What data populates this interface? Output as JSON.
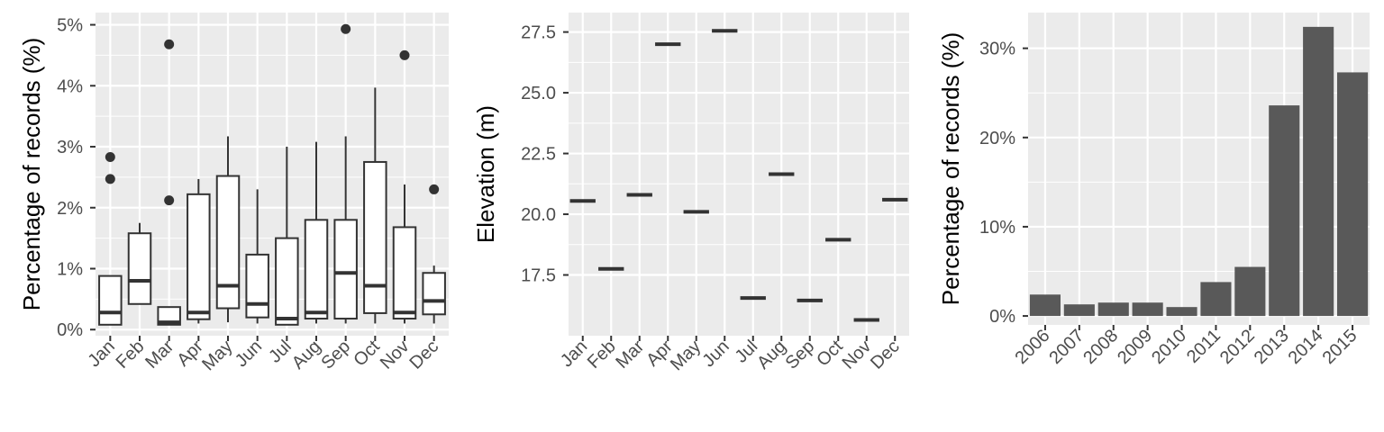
{
  "colors": {
    "panel_background": "#ebebeb",
    "grid_major": "#ffffff",
    "mark_fill": "#595959",
    "mark_line": "#333333",
    "tick_text": "#4d4d4d",
    "axis_title": "#000000"
  },
  "chart_data": [
    {
      "type": "boxplot",
      "title": "",
      "xlabel": "",
      "ylabel": "Percentage of records (%)",
      "ylim": [
        -0.1,
        5.2
      ],
      "y_ticks": [
        0,
        1,
        2,
        3,
        4,
        5
      ],
      "y_tick_labels": [
        "0%",
        "1%",
        "2%",
        "3%",
        "4%",
        "5%"
      ],
      "grid": true,
      "categories": [
        "Jan",
        "Feb",
        "Mar",
        "Apr",
        "May",
        "Jun",
        "Jul",
        "Aug",
        "Sep",
        "Oct",
        "Nov",
        "Dec"
      ],
      "boxes": [
        {
          "min": 0.08,
          "q1": 0.08,
          "median": 0.28,
          "q3": 0.88,
          "max": 0.88,
          "outliers": [
            2.47,
            2.83
          ]
        },
        {
          "min": 0.42,
          "q1": 0.42,
          "median": 0.8,
          "q3": 1.58,
          "max": 1.75,
          "outliers": []
        },
        {
          "min": 0.08,
          "q1": 0.08,
          "median": 0.12,
          "q3": 0.37,
          "max": 0.37,
          "outliers": [
            2.12,
            4.68
          ]
        },
        {
          "min": 0.1,
          "q1": 0.17,
          "median": 0.28,
          "q3": 2.22,
          "max": 2.47,
          "outliers": []
        },
        {
          "min": 0.12,
          "q1": 0.35,
          "median": 0.72,
          "q3": 2.52,
          "max": 3.17,
          "outliers": []
        },
        {
          "min": 0.1,
          "q1": 0.2,
          "median": 0.42,
          "q3": 1.23,
          "max": 2.3,
          "outliers": []
        },
        {
          "min": 0.08,
          "q1": 0.08,
          "median": 0.18,
          "q3": 1.5,
          "max": 3.0,
          "outliers": []
        },
        {
          "min": 0.1,
          "q1": 0.18,
          "median": 0.28,
          "q3": 1.8,
          "max": 3.08,
          "outliers": []
        },
        {
          "min": 0.1,
          "q1": 0.18,
          "median": 0.93,
          "q3": 1.8,
          "max": 3.17,
          "outliers": [
            4.93
          ]
        },
        {
          "min": 0.1,
          "q1": 0.27,
          "median": 0.72,
          "q3": 2.75,
          "max": 3.97,
          "outliers": []
        },
        {
          "min": 0.1,
          "q1": 0.18,
          "median": 0.28,
          "q3": 1.68,
          "max": 2.38,
          "outliers": [
            4.5
          ]
        },
        {
          "min": 0.1,
          "q1": 0.25,
          "median": 0.47,
          "q3": 0.93,
          "max": 1.05,
          "outliers": [
            2.3
          ]
        }
      ]
    },
    {
      "type": "crossbar",
      "title": "",
      "xlabel": "",
      "ylabel": "Elevation (m)",
      "ylim": [
        15.0,
        28.3
      ],
      "y_ticks": [
        17.5,
        20.0,
        22.5,
        25.0,
        27.5
      ],
      "y_tick_labels": [
        "17.5",
        "20.0",
        "22.5",
        "25.0",
        "27.5"
      ],
      "grid": true,
      "categories": [
        "Jan",
        "Feb",
        "Mar",
        "Apr",
        "May",
        "Jun",
        "Jul",
        "Aug",
        "Sep",
        "Oct",
        "Nov",
        "Dec"
      ],
      "values": [
        20.55,
        17.75,
        20.8,
        27.0,
        20.1,
        27.55,
        16.55,
        21.65,
        16.45,
        18.95,
        15.65,
        20.6
      ]
    },
    {
      "type": "bar",
      "title": "",
      "xlabel": "",
      "ylabel": "Percentage of records (%)",
      "ylim": [
        -1.0,
        34.0
      ],
      "y_ticks": [
        0,
        10,
        20,
        30
      ],
      "y_tick_labels": [
        "0%",
        "10%",
        "20%",
        "30%"
      ],
      "grid": true,
      "categories": [
        "2006",
        "2007",
        "2008",
        "2009",
        "2010",
        "2011",
        "2012",
        "2013",
        "2014",
        "2015"
      ],
      "values": [
        2.4,
        1.3,
        1.5,
        1.5,
        1.0,
        3.8,
        5.5,
        23.6,
        32.4,
        27.3
      ]
    }
  ]
}
